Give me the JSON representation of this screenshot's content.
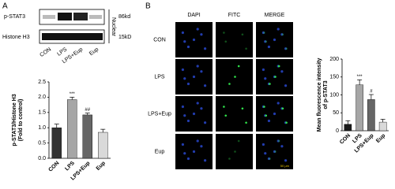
{
  "panels": {
    "a": "A",
    "b": "B"
  },
  "blot": {
    "rows": [
      "p-STAT3",
      "Histone H3"
    ],
    "sizes": [
      "86kd",
      "15kD"
    ],
    "fraction": "Nuclear",
    "lanes": [
      "CON",
      "LPS",
      "LPS+Eup",
      "Eup"
    ]
  },
  "microscopy": {
    "columns": [
      "DAPI",
      "FITC",
      "MERGE"
    ],
    "rows": [
      "CON",
      "LPS",
      "LPS+Eup",
      "Eup"
    ],
    "scale_bar": "50 μm"
  },
  "chart_data": [
    {
      "type": "bar",
      "ylabel": [
        "p-STAT3/Histone H3",
        "(Fold to control)"
      ],
      "categories": [
        "CON",
        "LPS",
        "LPS+Eup",
        "Eup"
      ],
      "values": [
        1.0,
        1.92,
        1.42,
        0.85
      ],
      "errors": [
        0.12,
        0.08,
        0.06,
        0.1
      ],
      "colors": [
        "#333333",
        "#a6a6a6",
        "#666666",
        "#d9d9d9"
      ],
      "annotations": [
        null,
        "***",
        "##",
        null
      ],
      "ylim": [
        0,
        2.5
      ],
      "yticks": [
        {
          "value": 0,
          "label": "0.0"
        },
        {
          "value": 0.5,
          "label": "0.5"
        },
        {
          "value": 1,
          "label": "1.0"
        },
        {
          "value": 1.5,
          "label": "1.5"
        },
        {
          "value": 2,
          "label": "2.0"
        },
        {
          "value": 2.5,
          "label": "2.5"
        }
      ]
    },
    {
      "type": "bar",
      "ylabel": [
        "Mean fluorescence intensity",
        "of p-STAT3"
      ],
      "categories": [
        "CON",
        "LPS",
        "LPS+Eup",
        "Eup"
      ],
      "values": [
        18,
        128,
        87,
        24
      ],
      "errors": [
        10,
        14,
        14,
        8
      ],
      "colors": [
        "#1a1a1a",
        "#a6a6a6",
        "#666666",
        "#d9d9d9"
      ],
      "annotations": [
        null,
        "***",
        "#",
        null
      ],
      "ylim": [
        0,
        200
      ],
      "yticks": [
        0,
        50,
        100,
        150,
        200
      ]
    }
  ]
}
